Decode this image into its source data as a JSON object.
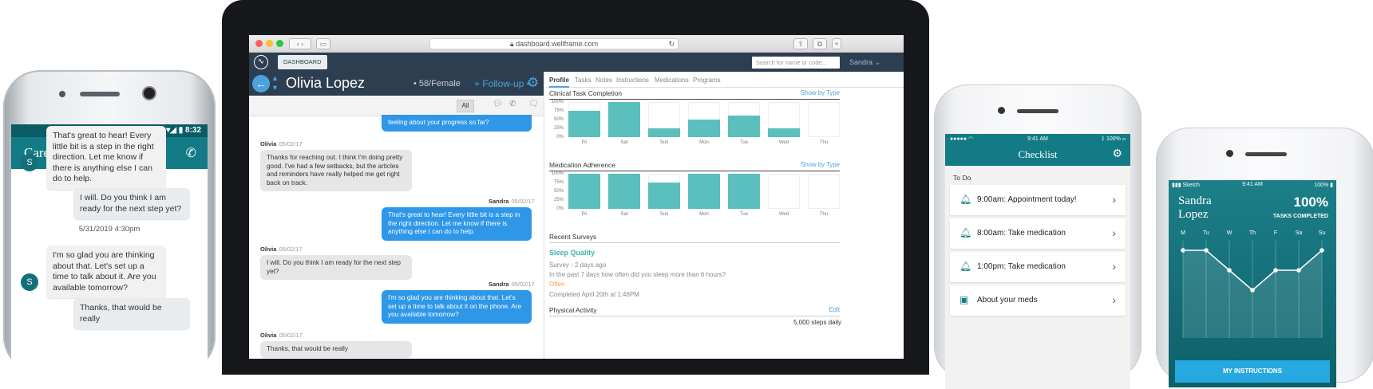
{
  "android": {
    "status_time": "8:32",
    "title": "Care team",
    "messages": [
      {
        "text": "That's great to hear! Every little bit is a step in the right direction. Let me know if there is anything else I can do to help.",
        "avatar": "S"
      },
      {
        "text": "I will. Do you think I am ready for the next step yet?"
      },
      {
        "timestamp": "5/31/2019 4:30pm"
      },
      {
        "text": "I'm so glad you are thinking about that. Let's set up a time to talk about it. Are you available tomorrow?",
        "avatar": "S"
      },
      {
        "text": "Thanks, that would be really"
      }
    ]
  },
  "browser": {
    "url": "dashboard.wellframe.com"
  },
  "dashboard": {
    "nav_button": "DASHBOARD",
    "search_placeholder": "Search for name or code...",
    "user": "Sandra",
    "patient_name": "Olivia Lopez",
    "patient_info": "• 58/Female",
    "follow_up": "+ Follow-up •",
    "filter_all": "All",
    "chat": [
      {
        "text": "feeling about your progress so far?"
      },
      {
        "sender": "Olivia",
        "date": "05/02/17",
        "text": "Thanks for reaching out. I think I'm doing pretty good. I've had a few setbacks, but the articles and reminders have really helped me get right back on track."
      },
      {
        "sender": "Sandra",
        "date": "05/02/17",
        "text": "That's great to hear! Every little bit is a step in the right direction. Let me know if there is anything else I can do to help."
      },
      {
        "sender": "Olivia",
        "date": "05/02/17",
        "text": "I will. Do you think I am ready for the next step yet?"
      },
      {
        "sender": "Sandra",
        "date": "05/02/17",
        "text": "I'm so glad you are thinking about that. Let's set up a time to talk about it on the phone. Are you available tomorrow?"
      },
      {
        "sender": "Olivia",
        "date": "05/02/17",
        "text": "Thanks, that would be really"
      }
    ],
    "tabs": [
      "Profile",
      "Tasks",
      "Notes",
      "Instructions",
      "Medications",
      "Programs"
    ],
    "clinical_title": "Clinical Task Completion",
    "medication_title": "Medication Adherence",
    "show_by_type": "Show by Type",
    "surveys_title": "Recent Surveys",
    "survey_name": "Sleep Quality",
    "survey_meta": "Survey - 2 days ago",
    "survey_question": "In the past 7 days how often did you sleep more than 6 hours?",
    "survey_answer": "Often",
    "survey_completed": "Completed April 20th at 1:46PM",
    "activity_title": "Physical Activity",
    "activity_edit": "Edit",
    "activity_goal": "5,000 steps daily"
  },
  "chart_data": [
    {
      "type": "bar",
      "title": "Clinical Task Completion",
      "categories": [
        "Fri",
        "Sat",
        "Sun",
        "Mon",
        "Tue",
        "Wed",
        "Thu"
      ],
      "values": [
        75,
        100,
        25,
        50,
        62,
        25,
        0
      ],
      "yticks": [
        "100%",
        "75%",
        "50%",
        "25%",
        "0%"
      ],
      "ylim": [
        0,
        100
      ]
    },
    {
      "type": "bar",
      "title": "Medication Adherence",
      "categories": [
        "Fri",
        "Sat",
        "Sun",
        "Mon",
        "Tue",
        "Wed",
        "Thu"
      ],
      "values": [
        100,
        100,
        75,
        100,
        100,
        0,
        0
      ],
      "yticks": [
        "100%",
        "75%",
        "50%",
        "25%",
        "0%"
      ],
      "ylim": [
        0,
        100
      ]
    },
    {
      "type": "line",
      "x": [
        "M",
        "Tu",
        "W",
        "Th",
        "F",
        "Sa",
        "Su"
      ],
      "values": [
        100,
        100,
        75,
        50,
        75,
        75,
        100
      ],
      "ylim": [
        0,
        100
      ]
    }
  ],
  "checklist": {
    "time": "9:41 AM",
    "battery": "100%",
    "title": "Checklist",
    "section": "To Do",
    "items": [
      {
        "label": "9:00am: Appointment today!",
        "icon": "bell-outline-icon"
      },
      {
        "label": "8:00am: Take medication",
        "icon": "bell-icon"
      },
      {
        "label": "1:00pm: Take medication",
        "icon": "bell-icon"
      },
      {
        "label": "About your meds",
        "icon": "book-icon"
      }
    ]
  },
  "progress": {
    "carrier": "Sketch",
    "time": "9:41 AM",
    "battery": "100%",
    "name": "Sandra Lopez",
    "percent": "100%",
    "caption": "TASKS COMPLETED",
    "button": "MY INSTRUCTIONS"
  }
}
